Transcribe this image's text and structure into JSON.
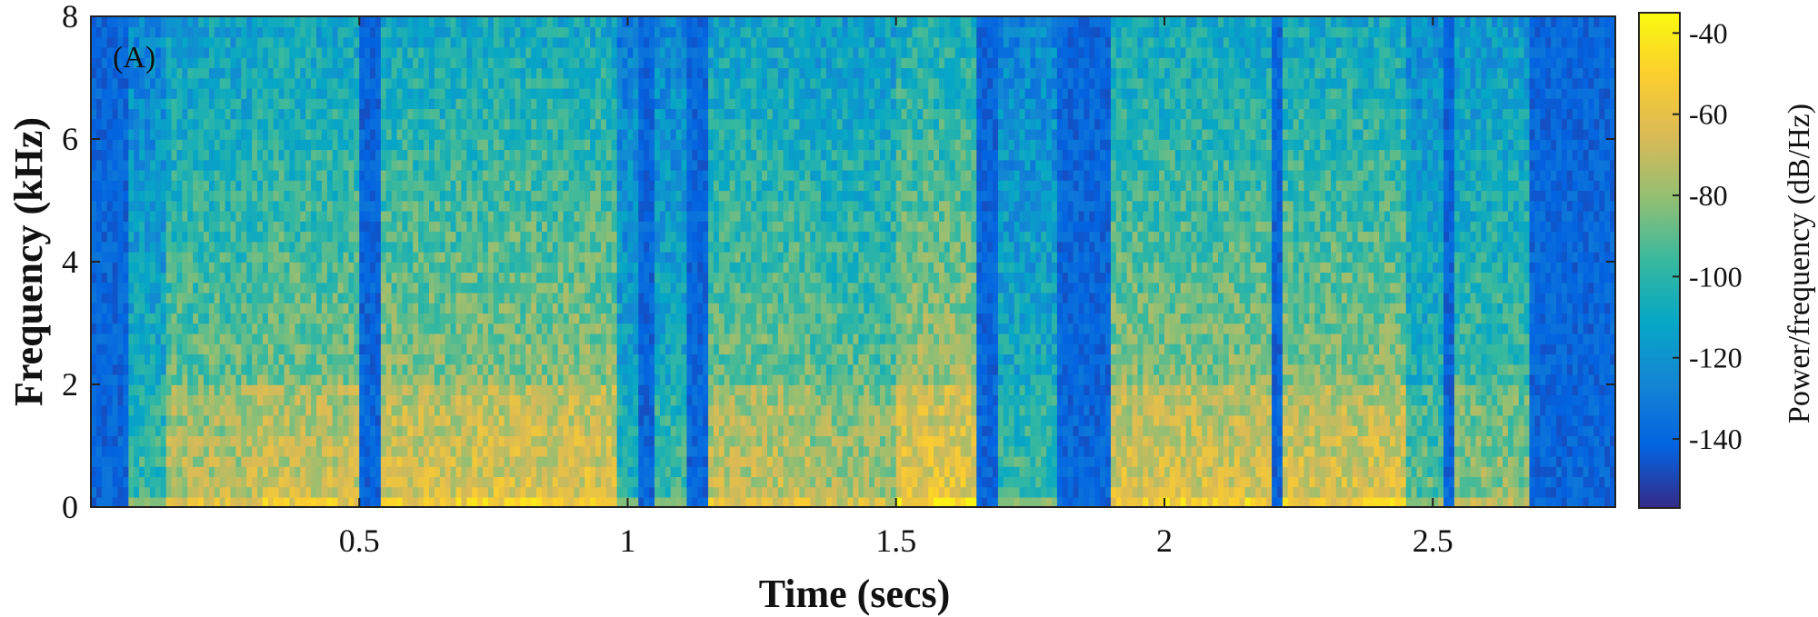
{
  "chart_data": {
    "type": "heatmap",
    "panel_label": "(A)",
    "xlabel": "Time (secs)",
    "ylabel": "Frequency (kHz)",
    "xlim": [
      0.0,
      2.84
    ],
    "ylim": [
      0,
      8
    ],
    "x_ticks": [
      {
        "value": 0.5,
        "label": "0.5"
      },
      {
        "value": 1.0,
        "label": "1"
      },
      {
        "value": 1.5,
        "label": "1.5"
      },
      {
        "value": 2.0,
        "label": "2"
      },
      {
        "value": 2.5,
        "label": "2.5"
      }
    ],
    "y_ticks": [
      {
        "value": 0,
        "label": "0"
      },
      {
        "value": 2,
        "label": "2"
      },
      {
        "value": 4,
        "label": "4"
      },
      {
        "value": 6,
        "label": "6"
      },
      {
        "value": 8,
        "label": "8"
      }
    ],
    "colorbar": {
      "label": "Power/frequency (dB/Hz)",
      "range": [
        -157,
        -35
      ],
      "ticks": [
        {
          "value": -40,
          "label": "-40"
        },
        {
          "value": -60,
          "label": "-60"
        },
        {
          "value": -80,
          "label": "-80"
        },
        {
          "value": -100,
          "label": "-100"
        },
        {
          "value": -120,
          "label": "-120"
        },
        {
          "value": -140,
          "label": "-140"
        }
      ],
      "colormap": [
        "#352a87",
        "#0363e1",
        "#1485d4",
        "#06a7c6",
        "#38b99e",
        "#92bf73",
        "#d9ba56",
        "#fcce2e",
        "#f9fb0e"
      ]
    },
    "time_segments": [
      {
        "t0": 0.0,
        "t1": 0.07,
        "level": 0.18
      },
      {
        "t0": 0.07,
        "t1": 0.14,
        "level": 0.55
      },
      {
        "t0": 0.14,
        "t1": 0.3,
        "level": 0.78
      },
      {
        "t0": 0.3,
        "t1": 0.5,
        "level": 0.82
      },
      {
        "t0": 0.5,
        "t1": 0.54,
        "level": 0.05
      },
      {
        "t0": 0.54,
        "t1": 0.73,
        "level": 0.85
      },
      {
        "t0": 0.73,
        "t1": 0.98,
        "level": 0.86
      },
      {
        "t0": 0.98,
        "t1": 1.02,
        "level": 0.5
      },
      {
        "t0": 1.02,
        "t1": 1.05,
        "level": 0.05
      },
      {
        "t0": 1.05,
        "t1": 1.11,
        "level": 0.55
      },
      {
        "t0": 1.11,
        "t1": 1.15,
        "level": 0.05
      },
      {
        "t0": 1.15,
        "t1": 1.34,
        "level": 0.8
      },
      {
        "t0": 1.34,
        "t1": 1.5,
        "level": 0.75
      },
      {
        "t0": 1.5,
        "t1": 1.65,
        "level": 0.9
      },
      {
        "t0": 1.65,
        "t1": 1.69,
        "level": 0.05
      },
      {
        "t0": 1.69,
        "t1": 1.8,
        "level": 0.55
      },
      {
        "t0": 1.8,
        "t1": 1.82,
        "level": 0.1
      },
      {
        "t0": 1.82,
        "t1": 1.9,
        "level": 0.05
      },
      {
        "t0": 1.9,
        "t1": 2.2,
        "level": 0.85
      },
      {
        "t0": 2.2,
        "t1": 2.22,
        "level": 0.1
      },
      {
        "t0": 2.22,
        "t1": 2.45,
        "level": 0.85
      },
      {
        "t0": 2.45,
        "t1": 2.52,
        "level": 0.6
      },
      {
        "t0": 2.52,
        "t1": 2.54,
        "level": 0.1
      },
      {
        "t0": 2.54,
        "t1": 2.68,
        "level": 0.7
      },
      {
        "t0": 2.68,
        "t1": 2.84,
        "level": 0.15
      }
    ]
  }
}
